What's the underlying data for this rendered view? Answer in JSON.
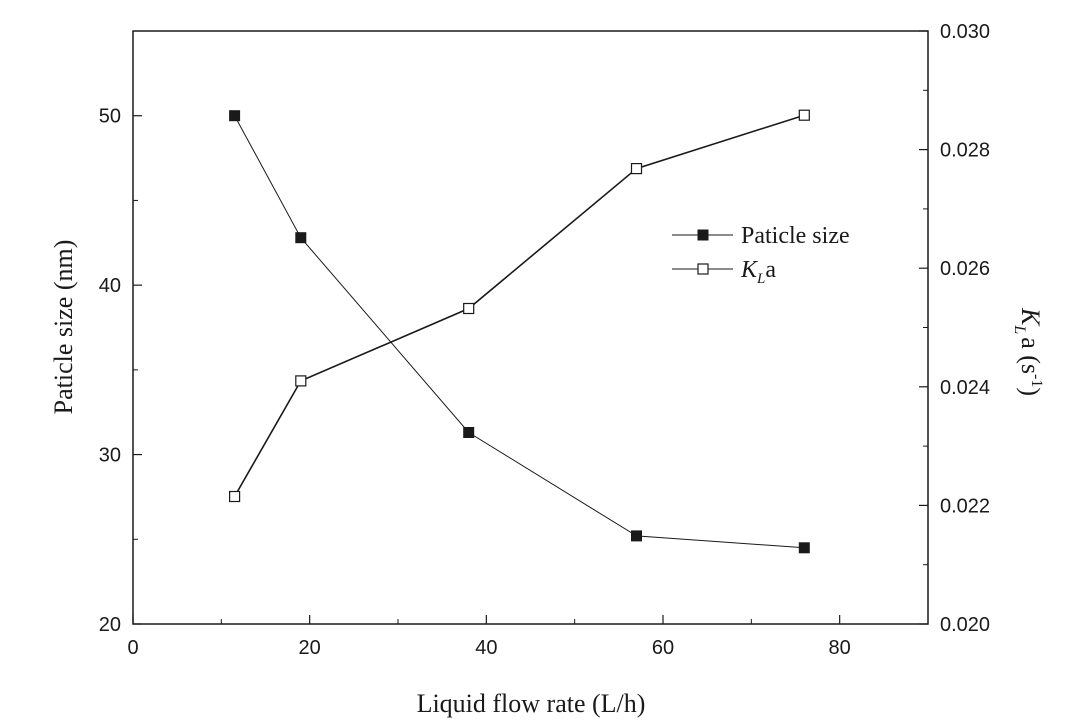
{
  "chart_data": {
    "type": "line",
    "xlabel": "Liquid flow rate (L/h)",
    "ylabel": "Paticle size (nm)",
    "y2label_main": "K",
    "y2label_sub": "L",
    "y2label_rest": "a (s",
    "y2label_sup": "-1",
    "y2label_close": ")",
    "xlim": [
      0,
      90
    ],
    "ylim": [
      20,
      55
    ],
    "y2lim": [
      0.02,
      0.03
    ],
    "xticks": [
      0,
      20,
      40,
      60,
      80
    ],
    "yticks": [
      20,
      30,
      40,
      50
    ],
    "y2ticks": [
      0.02,
      0.022,
      0.024,
      0.026,
      0.028,
      0.03
    ],
    "y2tick_labels": [
      "0.020",
      "0.022",
      "0.024",
      "0.026",
      "0.028",
      "0.030"
    ],
    "legend_position": "center-right",
    "series": [
      {
        "name": "Paticle size",
        "axis": "left",
        "marker": "filled-square",
        "x": [
          11.5,
          19,
          38,
          57,
          76
        ],
        "values": [
          50.0,
          42.8,
          31.3,
          25.2,
          24.5
        ]
      },
      {
        "name_main": "K",
        "name_sub": "L",
        "name_rest": "a",
        "axis": "right",
        "marker": "open-square",
        "x": [
          11.5,
          19,
          38,
          57,
          76
        ],
        "values": [
          0.02215,
          0.0241,
          0.02532,
          0.02768,
          0.02858
        ]
      }
    ],
    "colors": {
      "line": "#1a1a1a",
      "marker": "#1a1a1a",
      "background": "#ffffff"
    }
  }
}
